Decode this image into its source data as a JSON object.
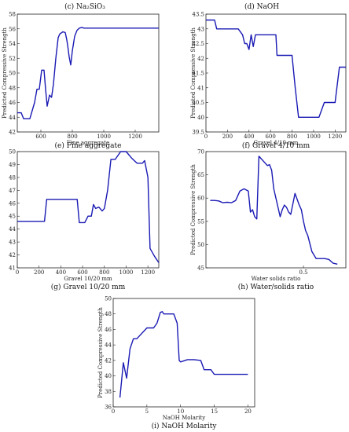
{
  "figure": {
    "top_captions": [
      "(c) Na₂SiO₃",
      "(d) NaOH"
    ]
  },
  "colors": {
    "series": "#1a1ab4",
    "axis": "#222222"
  },
  "chart_data": [
    {
      "type": "line",
      "caption": "(e) Fine aggregate",
      "xlabel": "Fine aggregate",
      "ylabel": "Predicted Compressive Strength",
      "xlim": [
        450,
        1350
      ],
      "ylim": [
        42,
        58
      ],
      "xticks": [
        600,
        800,
        1000,
        1200
      ],
      "yticks": [
        42,
        44,
        46,
        48,
        50,
        52,
        54,
        56,
        58
      ],
      "x": [
        450,
        475,
        490,
        530,
        560,
        575,
        590,
        605,
        620,
        630,
        640,
        655,
        668,
        680,
        695,
        710,
        720,
        740,
        755,
        765,
        772,
        780,
        790,
        800,
        815,
        830,
        845,
        860,
        875,
        900,
        950,
        1000,
        1100,
        1200,
        1300,
        1350
      ],
      "values": [
        44.6,
        44.6,
        43.8,
        43.8,
        46.0,
        47.8,
        47.8,
        50.4,
        50.4,
        47.8,
        45.5,
        47.0,
        46.7,
        48.5,
        52.0,
        54.8,
        55.3,
        55.6,
        55.5,
        54.5,
        53.5,
        52.2,
        51.1,
        53.0,
        55.0,
        55.8,
        56.1,
        56.2,
        56.1,
        56.1,
        56.1,
        56.1,
        56.1,
        56.1,
        56.1,
        56.1
      ]
    },
    {
      "type": "line",
      "caption": "(f) Gravel 4/10 mm",
      "xlabel": "Gravel 4/10 mm",
      "ylabel": "Predicted Compressive Strength",
      "xlim": [
        0,
        1300
      ],
      "ylim": [
        39.5,
        43.5
      ],
      "xticks": [
        0,
        200,
        400,
        600,
        800,
        1000,
        1200
      ],
      "yticks": [
        39.5,
        40,
        40.5,
        41,
        41.5,
        42,
        42.5,
        43,
        43.5
      ],
      "x": [
        0,
        80,
        100,
        200,
        300,
        340,
        360,
        380,
        400,
        420,
        440,
        460,
        480,
        520,
        560,
        600,
        650,
        660,
        700,
        750,
        800,
        830,
        860,
        900,
        950,
        1000,
        1050,
        1100,
        1150,
        1200,
        1240,
        1300
      ],
      "values": [
        43.3,
        43.3,
        43.0,
        43.0,
        43.0,
        42.8,
        42.5,
        42.5,
        42.3,
        42.8,
        42.4,
        42.8,
        42.8,
        42.8,
        42.8,
        42.8,
        42.8,
        42.1,
        42.1,
        42.1,
        42.1,
        41.0,
        40.0,
        40.0,
        40.0,
        40.0,
        40.0,
        40.5,
        40.5,
        40.5,
        41.7,
        41.7
      ]
    },
    {
      "type": "line",
      "caption": "(g) Gravel 10/20 mm",
      "xlabel": "Gravel 10/20 mm",
      "ylabel": "",
      "xlim": [
        0,
        1300
      ],
      "ylim": [
        41,
        50
      ],
      "xticks": [
        0,
        200,
        400,
        600,
        800,
        1000,
        1200
      ],
      "yticks": [
        41,
        42,
        43,
        44,
        45,
        46,
        47,
        48,
        49,
        50
      ],
      "x": [
        0,
        100,
        200,
        250,
        270,
        300,
        400,
        500,
        550,
        570,
        600,
        620,
        650,
        680,
        700,
        720,
        750,
        780,
        800,
        830,
        860,
        900,
        950,
        1000,
        1050,
        1100,
        1150,
        1170,
        1200,
        1220,
        1260,
        1300
      ],
      "values": [
        44.6,
        44.6,
        44.6,
        44.6,
        46.3,
        46.3,
        46.3,
        46.3,
        46.3,
        44.5,
        44.5,
        44.5,
        45.0,
        45.0,
        45.9,
        45.6,
        45.7,
        45.4,
        45.6,
        47.0,
        49.4,
        49.4,
        50.0,
        50.0,
        49.5,
        49.1,
        49.1,
        49.3,
        48.0,
        42.5,
        41.9,
        41.4
      ]
    },
    {
      "type": "line",
      "caption": "(h) Water/solids ratio",
      "xlabel": "Water solids ratio",
      "ylabel": "Predicted Compressive Strength",
      "xlim": [
        0.27,
        0.6
      ],
      "ylim": [
        45,
        70
      ],
      "xticks": [
        0.5
      ],
      "yticks": [
        45,
        50,
        55,
        60,
        65,
        70
      ],
      "x": [
        0.28,
        0.29,
        0.3,
        0.31,
        0.32,
        0.33,
        0.34,
        0.35,
        0.36,
        0.37,
        0.375,
        0.38,
        0.385,
        0.39,
        0.395,
        0.4,
        0.405,
        0.41,
        0.415,
        0.42,
        0.425,
        0.43,
        0.44,
        0.445,
        0.45,
        0.455,
        0.46,
        0.465,
        0.47,
        0.48,
        0.49,
        0.495,
        0.5,
        0.505,
        0.51,
        0.52,
        0.53,
        0.54,
        0.55,
        0.56,
        0.57,
        0.58
      ],
      "values": [
        59.5,
        59.5,
        59.4,
        59.0,
        59.1,
        59.0,
        59.5,
        61.5,
        62.0,
        61.5,
        57.0,
        57.5,
        56.0,
        55.5,
        69.0,
        68.5,
        68.0,
        67.5,
        67.0,
        67.2,
        66.0,
        62.0,
        58.0,
        56.0,
        57.5,
        58.5,
        58.0,
        57.0,
        56.5,
        61.0,
        58.5,
        57.5,
        55.0,
        53.0,
        52.0,
        48.5,
        47.0,
        47.0,
        47.0,
        46.8,
        46.0,
        45.8
      ]
    },
    {
      "type": "line",
      "caption": "(i) NaOH Molarity",
      "xlabel": "NaOH Molarity",
      "ylabel": "Predicted Compressive Strength",
      "xlim": [
        0,
        21
      ],
      "ylim": [
        36,
        50
      ],
      "xticks": [
        0,
        5,
        10,
        15,
        20
      ],
      "yticks": [
        36,
        38,
        40,
        42,
        44,
        46,
        48,
        50
      ],
      "x": [
        1,
        1.5,
        2,
        2.5,
        3,
        3.5,
        5,
        5.5,
        6,
        6.5,
        7,
        7.3,
        7.5,
        8,
        9,
        9.5,
        9.8,
        10,
        11,
        12,
        13,
        13.5,
        14,
        14.5,
        15,
        16,
        17,
        18,
        19,
        20
      ],
      "values": [
        37.2,
        41.7,
        39.7,
        43.5,
        44.8,
        44.8,
        46.2,
        46.2,
        46.2,
        46.8,
        48.2,
        48.3,
        48.0,
        48.0,
        48.0,
        46.8,
        42.0,
        41.8,
        42.1,
        42.1,
        42.0,
        40.8,
        40.8,
        40.8,
        40.2,
        40.2,
        40.2,
        40.2,
        40.2,
        40.2
      ]
    }
  ]
}
